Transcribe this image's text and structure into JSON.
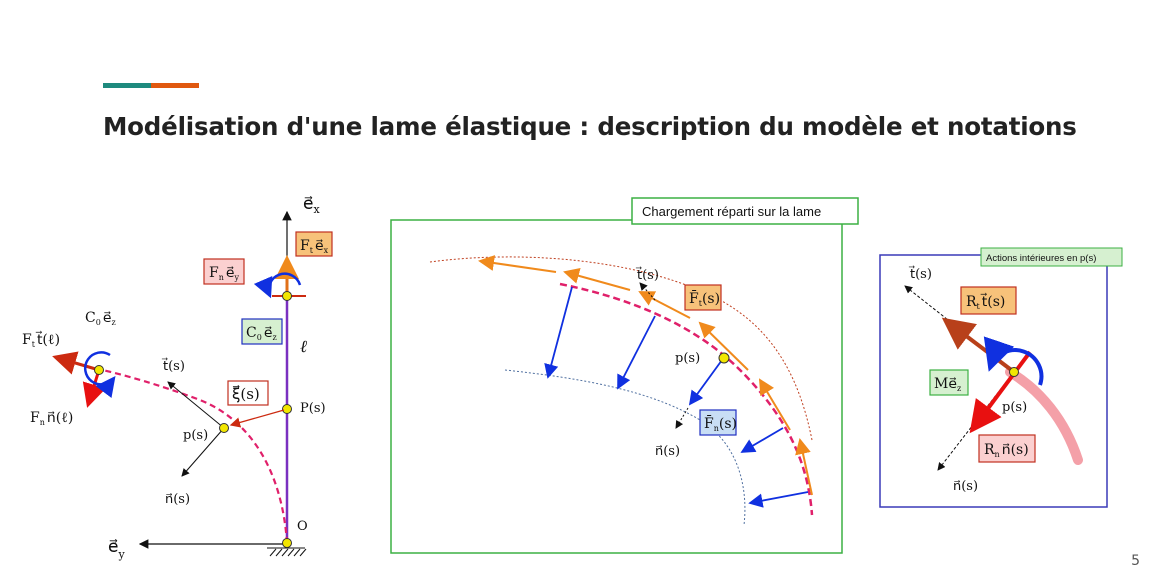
{
  "slide": {
    "title": "Modélisation d'une lame élastique : description du modèle et notations",
    "page_number": "5"
  },
  "colors": {
    "teal": "#1e8a7e",
    "orange": "#e0580f",
    "curve_magenta": "#e0206a",
    "arrow_red": "#cc2a10",
    "moment_blue": "#1030e0",
    "vertical_purple": "#7a30c0",
    "box_green": "#3cb043",
    "box_blue": "#3a3ab8"
  },
  "left_figure": {
    "axis_ex": "e⃗",
    "axis_ex_sub": "x",
    "axis_ey": "e⃗",
    "axis_ey_sub": "y",
    "Ft_ex": "F",
    "Ft_ex_sub": "t",
    "Ft_ex_vec": "e⃗",
    "Ft_ex_vsub": "x",
    "Fn_ey": "F",
    "Fn_ey_sub": "n",
    "Fn_ey_vec": "e⃗",
    "Fn_ey_vsub": "y",
    "C0_ez_box": "C",
    "C0_ez_box_sub": "0",
    "C0_ez_box_vec": "e⃗",
    "C0_ez_box_vsub": "z",
    "C0_ez_top": "C",
    "C0_ez_top_sub": "0",
    "C0_ez_top_vec": "e⃗",
    "C0_ez_top_vsub": "z",
    "Ft_tl": "F",
    "Ft_tl_sub": "t",
    "Ft_tl_rest": "t⃗(ℓ)",
    "Fn_nl": "F",
    "Fn_nl_sub": "n",
    "Fn_nl_rest": "n⃗(ℓ)",
    "ell": "ℓ",
    "t_s": "t⃗(s)",
    "xi_s": "ξ⃗(s)",
    "P_s": "P(s)",
    "p_s": "p(s)",
    "n_s": "n⃗(s)",
    "O": "O"
  },
  "middle_figure": {
    "header": "Chargement réparti sur la lame",
    "t_s": "t⃗(s)",
    "Ft_s": "F̄",
    "Ft_s_sub": "t",
    "Ft_s_rest": "(s)",
    "p_s": "p(s)",
    "Fn_s": "F̄",
    "Fn_s_sub": "n",
    "Fn_s_rest": "(s)",
    "n_s": "n⃗(s)"
  },
  "right_figure": {
    "header": "Actions intérieures en p(s)",
    "t_s": "t⃗(s)",
    "Rt": "R",
    "Rt_sub": "t",
    "Rt_rest": "t⃗(s)",
    "M_ez": "M",
    "M_ez_vec": "e⃗",
    "M_ez_vsub": "z",
    "p_s": "p(s)",
    "Rn": "R",
    "Rn_sub": "n",
    "Rn_rest": "n⃗(s)",
    "n_s": "n⃗(s)"
  }
}
